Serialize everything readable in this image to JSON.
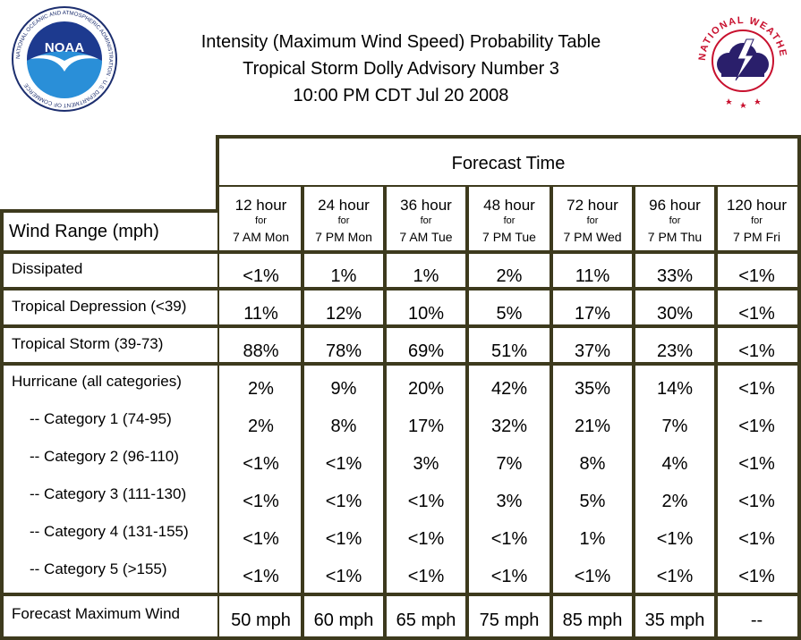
{
  "header": {
    "title_line1": "Intensity (Maximum Wind Speed) Probability Table",
    "title_line2": "Tropical Storm Dolly Advisory Number 3",
    "title_line3": "10:00 PM CDT Jul 20 2008",
    "noaa_logo_text": "NOAA",
    "noaa_ring_text": "NATIONAL OCEANIC AND ATMOSPHERIC ADMINISTRATION · U.S. DEPARTMENT OF COMMERCE",
    "nws_logo_text": "NATIONAL WEATHER SERVICE"
  },
  "table": {
    "forecast_time_label": "Forecast Time",
    "wind_range_label": "Wind Range (mph)",
    "columns": [
      {
        "hour": "12 hour",
        "for": "for",
        "when": "7 AM Mon"
      },
      {
        "hour": "24 hour",
        "for": "for",
        "when": "7 PM Mon"
      },
      {
        "hour": "36 hour",
        "for": "for",
        "when": "7 AM Tue"
      },
      {
        "hour": "48 hour",
        "for": "for",
        "when": "7 PM Tue"
      },
      {
        "hour": "72 hour",
        "for": "for",
        "when": "7 PM Wed"
      },
      {
        "hour": "96 hour",
        "for": "for",
        "when": "7 PM Thu"
      },
      {
        "hour": "120 hour",
        "for": "for",
        "when": "7 PM Fri"
      }
    ],
    "rows": [
      {
        "label": "Dissipated",
        "values": [
          "<1%",
          "1%",
          "1%",
          "2%",
          "11%",
          "33%",
          "<1%"
        ]
      },
      {
        "label": "Tropical Depression (<39)",
        "values": [
          "11%",
          "12%",
          "10%",
          "5%",
          "17%",
          "30%",
          "<1%"
        ]
      },
      {
        "label": "Tropical Storm (39-73)",
        "values": [
          "88%",
          "78%",
          "69%",
          "51%",
          "37%",
          "23%",
          "<1%"
        ]
      },
      {
        "label": "Hurricane (all categories)",
        "values": [
          "2%",
          "9%",
          "20%",
          "42%",
          "35%",
          "14%",
          "<1%"
        ]
      },
      {
        "label": "-- Category 1 (74-95)",
        "values": [
          "2%",
          "8%",
          "17%",
          "32%",
          "21%",
          "7%",
          "<1%"
        ]
      },
      {
        "label": "-- Category 2 (96-110)",
        "values": [
          "<1%",
          "<1%",
          "3%",
          "7%",
          "8%",
          "4%",
          "<1%"
        ]
      },
      {
        "label": "-- Category 3 (111-130)",
        "values": [
          "<1%",
          "<1%",
          "<1%",
          "3%",
          "5%",
          "2%",
          "<1%"
        ]
      },
      {
        "label": "-- Category 4 (131-155)",
        "values": [
          "<1%",
          "<1%",
          "<1%",
          "<1%",
          "1%",
          "<1%",
          "<1%"
        ]
      },
      {
        "label": "-- Category 5 (>155)",
        "values": [
          "<1%",
          "<1%",
          "<1%",
          "<1%",
          "<1%",
          "<1%",
          "<1%"
        ]
      }
    ],
    "max_wind_label": "Forecast Maximum Wind",
    "max_wind_values": [
      "50 mph",
      "60 mph",
      "65 mph",
      "75 mph",
      "85 mph",
      "35 mph",
      "--"
    ]
  }
}
